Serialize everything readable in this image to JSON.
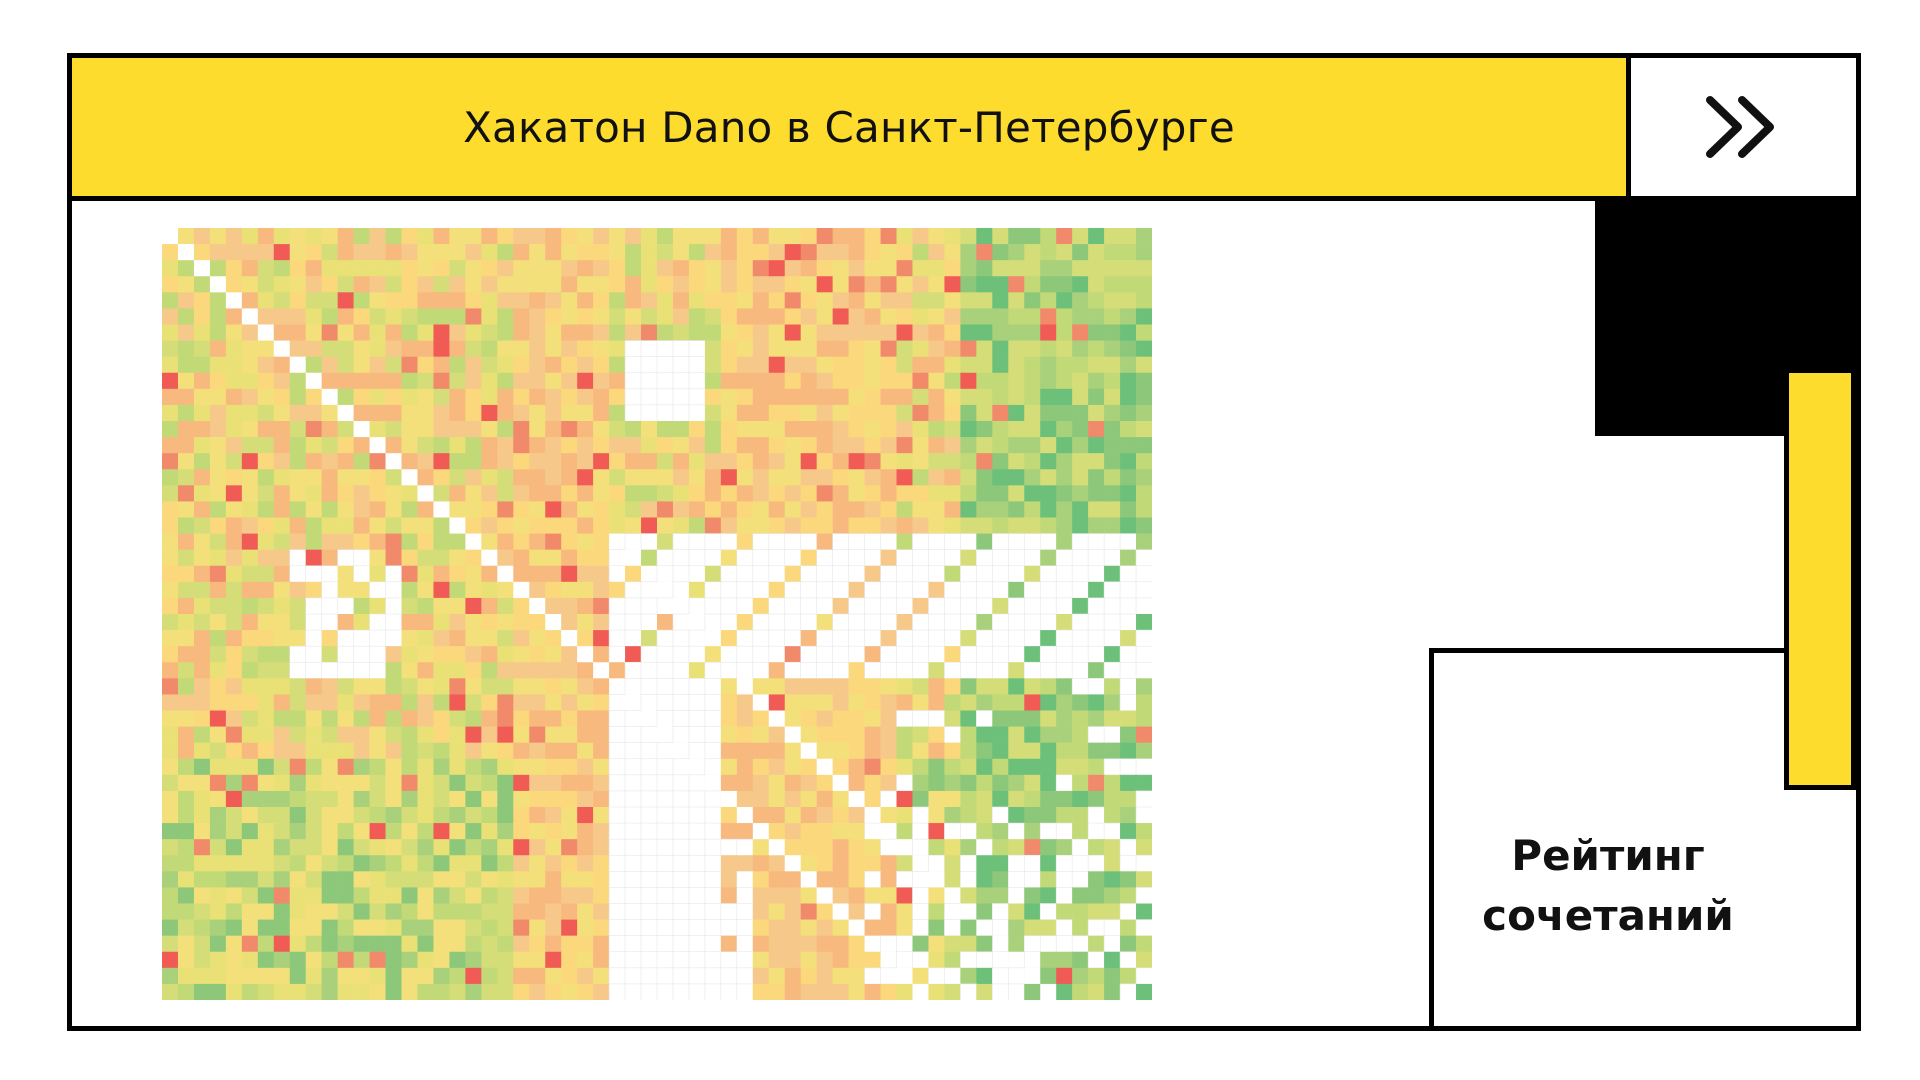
{
  "header": {
    "title": "Хакатон Dano в Санкт-Петербурге",
    "nav_icon": "double-chevron-right-icon"
  },
  "side_panel": {
    "label_lines": [
      "Рейтинг",
      "сочетаний"
    ]
  },
  "colors": {
    "accent_yellow": "#fddc2e",
    "black": "#000000",
    "heat_low": "#e8b8a0",
    "heat_mid": "#fbd87c",
    "heat_high": "#6cc07a",
    "heat_min_red": "#f05c55",
    "empty": "#ffffff"
  },
  "heatmap": {
    "rows": 48,
    "cols": 62,
    "description_blocks": "correlation-like rating matrix with diagonal"
  }
}
